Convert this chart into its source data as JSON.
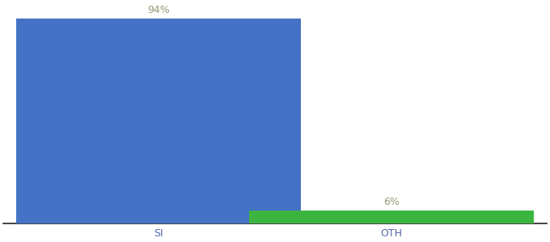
{
  "categories": [
    "SI",
    "OTH"
  ],
  "values": [
    94,
    6
  ],
  "bar_colors": [
    "#4472c4",
    "#3cb540"
  ],
  "labels": [
    "94%",
    "6%"
  ],
  "ylim": [
    0,
    100
  ],
  "background_color": "#ffffff",
  "label_fontsize": 9,
  "tick_fontsize": 9,
  "label_color": "#999977",
  "tick_color": "#5566aa",
  "bar_width": 0.55,
  "x_positions": [
    0.3,
    0.75
  ],
  "xlim": [
    0.0,
    1.05
  ]
}
